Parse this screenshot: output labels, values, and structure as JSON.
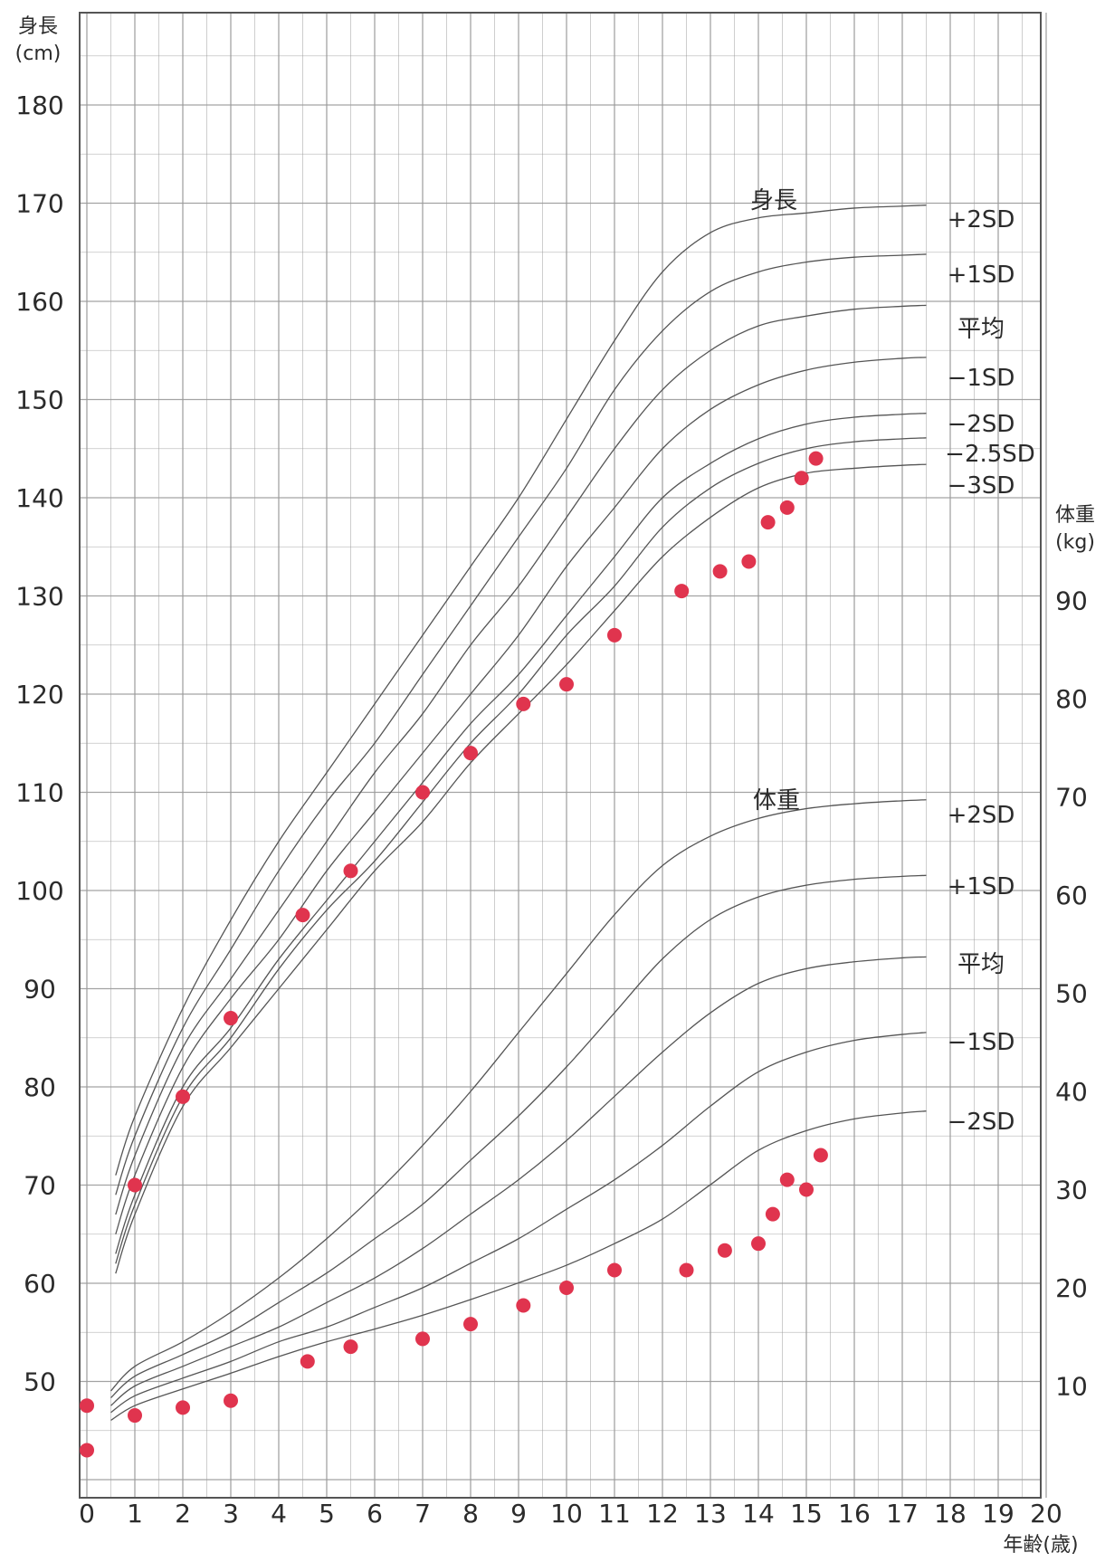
{
  "chart_data": {
    "type": "scatter",
    "title": "",
    "x": {
      "label": "年齢(歳)",
      "range": [
        0,
        20
      ],
      "ticks": [
        0,
        1,
        2,
        3,
        4,
        5,
        6,
        7,
        8,
        9,
        10,
        11,
        12,
        13,
        14,
        15,
        16,
        17,
        18,
        19,
        20
      ]
    },
    "y_left": {
      "label": "身長\n(cm)",
      "range": [
        40,
        190
      ],
      "ticks": [
        50,
        60,
        70,
        80,
        90,
        100,
        110,
        120,
        130,
        140,
        150,
        160,
        170,
        180
      ]
    },
    "y_right": {
      "label": "体重\n(kg)",
      "range": [
        0,
        150
      ],
      "ticks": [
        10,
        20,
        30,
        40,
        50,
        60,
        70,
        80,
        90
      ]
    },
    "grid": true,
    "grid_minor": 0.5,
    "colors": {
      "points": "#e0344e",
      "curves": "#555555",
      "grid": "#9a9a9a",
      "text": "#2b2b2b"
    },
    "height_group_label": "身長",
    "weight_group_label": "体重",
    "height_curves": [
      {
        "name": "+2SD",
        "points": [
          [
            0.6,
            71
          ],
          [
            1,
            77
          ],
          [
            2,
            88
          ],
          [
            3,
            97
          ],
          [
            4,
            105
          ],
          [
            5,
            112
          ],
          [
            6,
            119
          ],
          [
            7,
            126
          ],
          [
            8,
            133
          ],
          [
            9,
            140
          ],
          [
            10,
            148
          ],
          [
            11,
            156
          ],
          [
            12,
            163
          ],
          [
            13,
            167
          ],
          [
            14,
            168.5
          ],
          [
            15,
            169
          ],
          [
            16,
            169.5
          ],
          [
            17,
            169.7
          ],
          [
            17.5,
            169.8
          ]
        ]
      },
      {
        "name": "+1SD",
        "points": [
          [
            0.6,
            69
          ],
          [
            1,
            75
          ],
          [
            2,
            86
          ],
          [
            3,
            94
          ],
          [
            4,
            102
          ],
          [
            5,
            109
          ],
          [
            6,
            115
          ],
          [
            7,
            122
          ],
          [
            8,
            129
          ],
          [
            9,
            136
          ],
          [
            10,
            143
          ],
          [
            11,
            151
          ],
          [
            12,
            157
          ],
          [
            13,
            161
          ],
          [
            14,
            163
          ],
          [
            15,
            164
          ],
          [
            16,
            164.5
          ],
          [
            17,
            164.7
          ],
          [
            17.5,
            164.8
          ]
        ]
      },
      {
        "name": "平均",
        "points": [
          [
            0.6,
            67
          ],
          [
            1,
            73
          ],
          [
            2,
            84
          ],
          [
            3,
            91
          ],
          [
            4,
            98
          ],
          [
            5,
            105
          ],
          [
            6,
            112
          ],
          [
            7,
            118
          ],
          [
            8,
            125
          ],
          [
            9,
            131
          ],
          [
            10,
            138
          ],
          [
            11,
            145
          ],
          [
            12,
            151
          ],
          [
            13,
            155
          ],
          [
            14,
            157.5
          ],
          [
            15,
            158.5
          ],
          [
            16,
            159.2
          ],
          [
            17,
            159.5
          ],
          [
            17.5,
            159.6
          ]
        ]
      },
      {
        "name": "-1SD",
        "points": [
          [
            0.6,
            65
          ],
          [
            1,
            71
          ],
          [
            2,
            82
          ],
          [
            3,
            89
          ],
          [
            4,
            95
          ],
          [
            5,
            102
          ],
          [
            6,
            108
          ],
          [
            7,
            114
          ],
          [
            8,
            120
          ],
          [
            9,
            126
          ],
          [
            10,
            133
          ],
          [
            11,
            139
          ],
          [
            12,
            145
          ],
          [
            13,
            149
          ],
          [
            14,
            151.5
          ],
          [
            15,
            153
          ],
          [
            16,
            153.8
          ],
          [
            17,
            154.2
          ],
          [
            17.5,
            154.3
          ]
        ]
      },
      {
        "name": "-2SD",
        "points": [
          [
            0.6,
            63
          ],
          [
            1,
            69
          ],
          [
            2,
            80
          ],
          [
            3,
            86
          ],
          [
            4,
            93
          ],
          [
            5,
            99
          ],
          [
            6,
            105
          ],
          [
            7,
            111
          ],
          [
            8,
            117
          ],
          [
            9,
            122
          ],
          [
            10,
            128
          ],
          [
            11,
            134
          ],
          [
            12,
            140
          ],
          [
            13,
            143.5
          ],
          [
            14,
            146
          ],
          [
            15,
            147.5
          ],
          [
            16,
            148.2
          ],
          [
            17,
            148.5
          ],
          [
            17.5,
            148.6
          ]
        ]
      },
      {
        "name": "-2.5SD",
        "points": [
          [
            0.6,
            62
          ],
          [
            1,
            68
          ],
          [
            2,
            79
          ],
          [
            3,
            85
          ],
          [
            4,
            92
          ],
          [
            5,
            98
          ],
          [
            6,
            103
          ],
          [
            7,
            109
          ],
          [
            8,
            115
          ],
          [
            9,
            120
          ],
          [
            10,
            126
          ],
          [
            11,
            131
          ],
          [
            12,
            137
          ],
          [
            13,
            141
          ],
          [
            14,
            143.5
          ],
          [
            15,
            145
          ],
          [
            16,
            145.7
          ],
          [
            17,
            146
          ],
          [
            17.5,
            146.1
          ]
        ]
      },
      {
        "name": "-3SD",
        "points": [
          [
            0.6,
            61
          ],
          [
            1,
            67
          ],
          [
            2,
            78
          ],
          [
            3,
            84
          ],
          [
            4,
            90
          ],
          [
            5,
            96
          ],
          [
            6,
            102
          ],
          [
            7,
            107
          ],
          [
            8,
            113
          ],
          [
            9,
            118
          ],
          [
            10,
            123
          ],
          [
            11,
            128.5
          ],
          [
            12,
            134
          ],
          [
            13,
            138
          ],
          [
            14,
            141
          ],
          [
            15,
            142.5
          ],
          [
            16,
            143
          ],
          [
            17,
            143.3
          ],
          [
            17.5,
            143.4
          ]
        ]
      }
    ],
    "weight_curves": [
      {
        "name": "+2SD",
        "points": [
          [
            0.5,
            9.5
          ],
          [
            1,
            12
          ],
          [
            2,
            14.5
          ],
          [
            3,
            17.5
          ],
          [
            4,
            21
          ],
          [
            5,
            25
          ],
          [
            6,
            29.5
          ],
          [
            7,
            34.5
          ],
          [
            8,
            40
          ],
          [
            9,
            46
          ],
          [
            10,
            52
          ],
          [
            11,
            58
          ],
          [
            12,
            63
          ],
          [
            13,
            66
          ],
          [
            14,
            67.8
          ],
          [
            15,
            68.8
          ],
          [
            16,
            69.3
          ],
          [
            17,
            69.6
          ],
          [
            17.5,
            69.7
          ]
        ]
      },
      {
        "name": "+1SD",
        "points": [
          [
            0.5,
            8.8
          ],
          [
            1,
            11
          ],
          [
            2,
            13.2
          ],
          [
            3,
            15.5
          ],
          [
            4,
            18.5
          ],
          [
            5,
            21.5
          ],
          [
            6,
            25
          ],
          [
            7,
            28.5
          ],
          [
            8,
            33
          ],
          [
            9,
            37.5
          ],
          [
            10,
            42.5
          ],
          [
            11,
            48
          ],
          [
            12,
            53.5
          ],
          [
            13,
            57.5
          ],
          [
            14,
            59.8
          ],
          [
            15,
            61
          ],
          [
            16,
            61.6
          ],
          [
            17,
            61.9
          ],
          [
            17.5,
            62
          ]
        ]
      },
      {
        "name": "平均",
        "points": [
          [
            0.5,
            8
          ],
          [
            1,
            10
          ],
          [
            2,
            12
          ],
          [
            3,
            14
          ],
          [
            4,
            16
          ],
          [
            5,
            18.5
          ],
          [
            6,
            21
          ],
          [
            7,
            24
          ],
          [
            8,
            27.5
          ],
          [
            9,
            31
          ],
          [
            10,
            35
          ],
          [
            11,
            39.5
          ],
          [
            12,
            44
          ],
          [
            13,
            48
          ],
          [
            14,
            51
          ],
          [
            15,
            52.5
          ],
          [
            16,
            53.2
          ],
          [
            17,
            53.6
          ],
          [
            17.5,
            53.7
          ]
        ]
      },
      {
        "name": "-1SD",
        "points": [
          [
            0.5,
            7.3
          ],
          [
            1,
            9
          ],
          [
            2,
            10.8
          ],
          [
            3,
            12.5
          ],
          [
            4,
            14.5
          ],
          [
            5,
            16
          ],
          [
            6,
            18
          ],
          [
            7,
            20
          ],
          [
            8,
            22.5
          ],
          [
            9,
            25
          ],
          [
            10,
            28
          ],
          [
            11,
            31
          ],
          [
            12,
            34.5
          ],
          [
            13,
            38.5
          ],
          [
            14,
            42
          ],
          [
            15,
            44
          ],
          [
            16,
            45.2
          ],
          [
            17,
            45.8
          ],
          [
            17.5,
            46
          ]
        ]
      },
      {
        "name": "-2SD",
        "points": [
          [
            0.5,
            6.5
          ],
          [
            1,
            8
          ],
          [
            2,
            9.7
          ],
          [
            3,
            11.3
          ],
          [
            4,
            13
          ],
          [
            5,
            14.5
          ],
          [
            6,
            15.8
          ],
          [
            7,
            17.2
          ],
          [
            8,
            18.8
          ],
          [
            9,
            20.5
          ],
          [
            10,
            22.3
          ],
          [
            11,
            24.5
          ],
          [
            12,
            27
          ],
          [
            13,
            30.5
          ],
          [
            14,
            34
          ],
          [
            15,
            36
          ],
          [
            16,
            37.2
          ],
          [
            17,
            37.8
          ],
          [
            17.5,
            38
          ]
        ]
      }
    ],
    "height_points": [
      [
        0,
        43
      ],
      [
        1,
        70
      ],
      [
        2,
        79
      ],
      [
        3,
        87
      ],
      [
        4.5,
        97.5
      ],
      [
        5.5,
        102
      ],
      [
        7,
        110
      ],
      [
        8,
        114
      ],
      [
        9.1,
        119
      ],
      [
        10,
        121
      ],
      [
        11,
        126
      ],
      [
        12.4,
        130.5
      ],
      [
        13.2,
        132.5
      ],
      [
        13.8,
        133.5
      ],
      [
        14.2,
        137.5
      ],
      [
        14.6,
        139
      ],
      [
        14.9,
        142
      ],
      [
        15.2,
        144
      ]
    ],
    "weight_points": [
      [
        0,
        8
      ],
      [
        1,
        7
      ],
      [
        2,
        7.8
      ],
      [
        3,
        8.5
      ],
      [
        4.6,
        12.5
      ],
      [
        5.5,
        14
      ],
      [
        7,
        14.8
      ],
      [
        8,
        16.3
      ],
      [
        9.1,
        18.2
      ],
      [
        10,
        20
      ],
      [
        11,
        21.8
      ],
      [
        12.5,
        21.8
      ],
      [
        13.3,
        23.8
      ],
      [
        14,
        24.5
      ],
      [
        14.3,
        27.5
      ],
      [
        14.6,
        31
      ],
      [
        15,
        30
      ],
      [
        15.3,
        33.5
      ]
    ],
    "height_curve_labels": [
      "+2SD",
      "+1SD",
      "平均",
      "−1SD",
      "−2SD",
      "−2.5SD",
      "−3SD"
    ],
    "weight_curve_labels": [
      "+2SD",
      "+1SD",
      "平均",
      "−1SD",
      "−2SD"
    ]
  }
}
